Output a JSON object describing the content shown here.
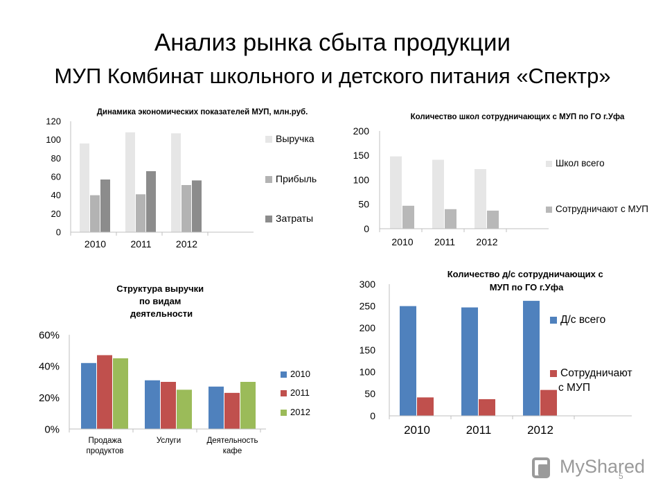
{
  "slide": {
    "title_line1": "Анализ рынка сбыта продукции",
    "title_line2": "МУП Комбинат школьного и детского питания «Спектр»",
    "page_number": "5",
    "logo_text": "MyShared"
  },
  "chart_data": [
    {
      "type": "bar",
      "title": "Динамика экономических показателей МУП, млн.руб.",
      "categories": [
        "2010",
        "2011",
        "2012"
      ],
      "series": [
        {
          "name": "Выручка",
          "values": [
            96,
            108,
            107
          ],
          "color": "#e6e6e6"
        },
        {
          "name": "Прибыль",
          "values": [
            40,
            41,
            51
          ],
          "color": "#b3b3b3"
        },
        {
          "name": "Затраты",
          "values": [
            57,
            66,
            56
          ],
          "color": "#8c8c8c"
        }
      ],
      "ylim": [
        0,
        120
      ],
      "yticks": [
        "0",
        "20",
        "40",
        "60",
        "80",
        "100",
        "120"
      ],
      "legend": "right",
      "grid": false
    },
    {
      "type": "bar",
      "title": "Количество школ сотрудничающих с МУП по ГО г.Уфа",
      "categories": [
        "2010",
        "2011",
        "2012"
      ],
      "series": [
        {
          "name": "Школ всего",
          "values": [
            148,
            141,
            122
          ],
          "color": "#e6e6e6"
        },
        {
          "name": "Сотрудничают с МУП",
          "values": [
            47,
            40,
            37
          ],
          "color": "#b8b8b8"
        }
      ],
      "ylim": [
        0,
        200
      ],
      "yticks": [
        "0",
        "50",
        "100",
        "150",
        "200"
      ],
      "legend": "right",
      "grid": false
    },
    {
      "type": "bar",
      "title": "Структура выручки по видам деятельности",
      "categories": [
        "Продажа продуктов",
        "Услуги",
        "Деятельность кафе"
      ],
      "series": [
        {
          "name": "2010",
          "values": [
            42,
            31,
            27
          ],
          "color": "#4f81bd"
        },
        {
          "name": "2011",
          "values": [
            47,
            30,
            23
          ],
          "color": "#c0504d"
        },
        {
          "name": "2012",
          "values": [
            45,
            25,
            30
          ],
          "color": "#9bbb59"
        }
      ],
      "ylim": [
        0,
        60
      ],
      "yticks": [
        "0%",
        "20%",
        "40%",
        "60%"
      ],
      "legend": "right",
      "grid": false
    },
    {
      "type": "bar",
      "title": "Количество д/с сотрудничающих с МУП по ГО г.Уфа",
      "categories": [
        "2010",
        "2011",
        "2012"
      ],
      "series": [
        {
          "name": "Д/с всего",
          "values": [
            250,
            247,
            262
          ],
          "color": "#4f81bd"
        },
        {
          "name": "Сотрудничают с МУП",
          "values": [
            42,
            38,
            59
          ],
          "color": "#c0504d"
        }
      ],
      "ylim": [
        0,
        300
      ],
      "yticks": [
        "0",
        "50",
        "100",
        "150",
        "200",
        "250",
        "300"
      ],
      "legend": "right",
      "grid": false
    }
  ]
}
